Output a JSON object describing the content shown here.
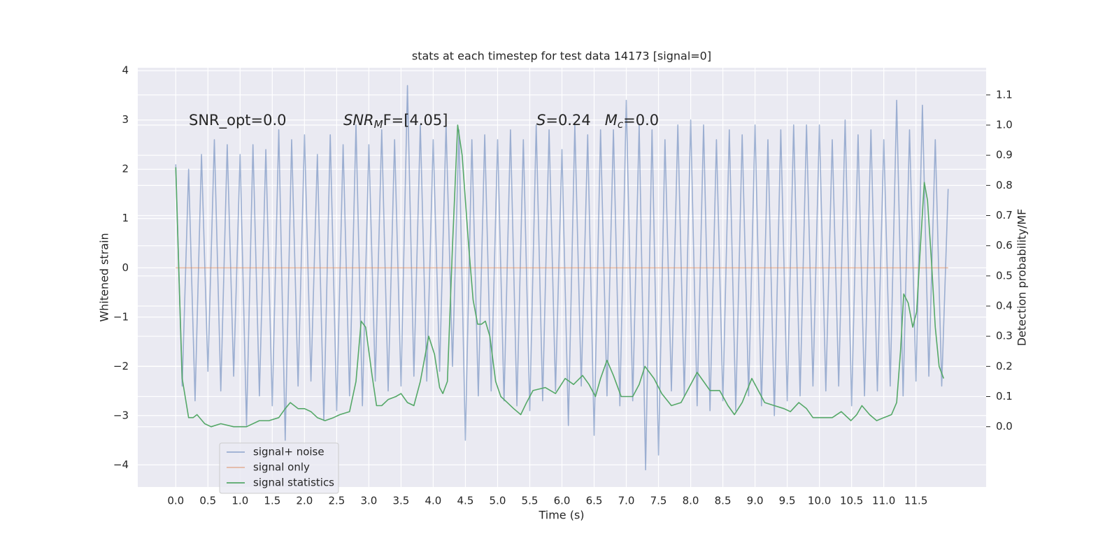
{
  "chart_data": {
    "type": "line",
    "title": "stats at each timestep for test data 14173 [signal=0]",
    "xlabel": "Time (s)",
    "ylabel": "Whitened strain",
    "y2label": "Detection probability/MF",
    "xlim": [
      -0.59,
      12.59
    ],
    "ylim": [
      -4.45,
      4.06
    ],
    "y2lim": [
      -0.2,
      1.19
    ],
    "xticks": [
      {
        "value": 0,
        "label": "0.0"
      },
      0.5,
      {
        "value": 1,
        "label": "1.0"
      },
      1.5,
      {
        "value": 2,
        "label": "2.0"
      },
      2.5,
      {
        "value": 3,
        "label": "3.0"
      },
      3.5,
      {
        "value": 4,
        "label": "4.0"
      },
      4.5,
      {
        "value": 5,
        "label": "5.0"
      },
      5.5,
      {
        "value": 6,
        "label": "6.0"
      },
      6.5,
      {
        "value": 7,
        "label": "7.0"
      },
      7.5,
      {
        "value": 8,
        "label": "8.0"
      },
      8.5,
      {
        "value": 9,
        "label": "9.0"
      },
      9.5,
      {
        "value": 10,
        "label": "10.0"
      },
      10.5,
      {
        "value": 11,
        "label": "11.0"
      },
      11.5
    ],
    "yticks": [
      {
        "value": -4,
        "label": "−4"
      },
      {
        "value": -3,
        "label": "−3"
      },
      {
        "value": -2,
        "label": "−2"
      },
      {
        "value": -1,
        "label": "−1"
      },
      0,
      1,
      2,
      3,
      4
    ],
    "y2ticks": [
      {
        "value": 0,
        "label": "0.0"
      },
      0.1,
      0.2,
      0.3,
      0.4,
      0.5,
      0.6,
      0.7,
      0.8,
      0.9,
      {
        "value": 1,
        "label": "1.0"
      },
      1.1
    ],
    "grid": true,
    "legend": "lower left",
    "annotations": [
      [
        {
          "text": "SNR_opt=0.0"
        }
      ],
      [
        {
          "text": "SNR",
          "italic": true
        },
        {
          "text": "M",
          "italic": true,
          "sub": true
        },
        {
          "text": "F=[4.05]"
        }
      ],
      [
        {
          "text": "S",
          "italic": true
        },
        {
          "text": "=0.24   "
        },
        {
          "text": "M",
          "italic": true
        },
        {
          "text": "c",
          "italic": true,
          "sub": true
        },
        {
          "text": "=0.0"
        }
      ]
    ],
    "series": [
      {
        "name": "signal+ noise",
        "color": "#4c72b0",
        "opacity": 0.5,
        "x": [
          0.0,
          0.1,
          0.2,
          0.3,
          0.4,
          0.5,
          0.6,
          0.7,
          0.8,
          0.9,
          1.0,
          1.1,
          1.2,
          1.3,
          1.4,
          1.5,
          1.6,
          1.7,
          1.8,
          1.9,
          2.0,
          2.1,
          2.2,
          2.3,
          2.4,
          2.5,
          2.6,
          2.7,
          2.8,
          2.9,
          3.0,
          3.1,
          3.2,
          3.3,
          3.4,
          3.5,
          3.6,
          3.7,
          3.8,
          3.9,
          4.0,
          4.1,
          4.2,
          4.3,
          4.4,
          4.5,
          4.6,
          4.7,
          4.8,
          4.9,
          5.0,
          5.1,
          5.2,
          5.3,
          5.4,
          5.5,
          5.6,
          5.7,
          5.8,
          5.9,
          6.0,
          6.1,
          6.2,
          6.3,
          6.4,
          6.5,
          6.6,
          6.7,
          6.8,
          6.9,
          7.0,
          7.1,
          7.2,
          7.3,
          7.4,
          7.5,
          7.6,
          7.7,
          7.8,
          7.9,
          8.0,
          8.1,
          8.2,
          8.3,
          8.4,
          8.5,
          8.6,
          8.7,
          8.8,
          8.9,
          9.0,
          9.1,
          9.2,
          9.3,
          9.4,
          9.5,
          9.6,
          9.7,
          9.8,
          9.9,
          10.0,
          10.1,
          10.2,
          10.3,
          10.4,
          10.5,
          10.6,
          10.7,
          10.8,
          10.9,
          11.0,
          11.1,
          11.2,
          11.3,
          11.4,
          11.5,
          11.6,
          11.7,
          11.8,
          11.9,
          12.0
        ],
        "values": [
          2.1,
          -2.4,
          2.0,
          -2.7,
          2.3,
          -2.1,
          2.6,
          -2.5,
          2.5,
          -2.2,
          2.3,
          -3.2,
          2.5,
          -2.6,
          2.4,
          -2.8,
          2.8,
          -3.5,
          2.6,
          -2.4,
          2.7,
          -2.3,
          2.3,
          -3.1,
          2.7,
          -2.9,
          2.5,
          -2.6,
          2.9,
          -2.8,
          2.5,
          -2.3,
          2.8,
          -2.5,
          2.6,
          -2.4,
          3.7,
          -2.2,
          2.9,
          -2.3,
          2.6,
          -2.1,
          2.9,
          -2.0,
          2.8,
          -3.5,
          2.6,
          -2.6,
          2.7,
          -2.5,
          2.6,
          -2.7,
          2.8,
          -2.8,
          2.6,
          -2.9,
          2.9,
          -2.7,
          2.8,
          -2.5,
          2.4,
          -3.2,
          2.9,
          -2.4,
          2.7,
          -3.4,
          2.8,
          -2.6,
          2.8,
          -2.8,
          3.4,
          -2.7,
          2.9,
          -4.1,
          2.8,
          -3.8,
          2.6,
          -2.5,
          2.9,
          -2.6,
          3.0,
          -2.8,
          2.9,
          -2.9,
          2.6,
          -2.7,
          2.8,
          -2.9,
          2.7,
          -2.6,
          2.9,
          -2.8,
          2.6,
          -3.0,
          2.8,
          -2.7,
          2.9,
          -2.6,
          2.9,
          -2.4,
          2.9,
          -2.5,
          2.6,
          -2.4,
          3.0,
          -2.8,
          2.7,
          -2.6,
          2.8,
          -2.5,
          2.6,
          -2.4,
          3.4,
          -2.6,
          2.8,
          -2.3,
          3.3,
          -2.2,
          2.6,
          -2.4,
          1.6
        ]
      },
      {
        "name": "signal only",
        "color": "#dd8452",
        "opacity": 0.5,
        "x": [
          0.0,
          12.0
        ],
        "values": [
          0,
          0
        ]
      },
      {
        "name": "signal statistics",
        "color": "#55a868",
        "opacity": 1,
        "axis": "y2",
        "x": [
          0.0,
          0.05,
          0.1,
          0.2,
          0.27,
          0.33,
          0.45,
          0.55,
          0.7,
          0.9,
          1.1,
          1.3,
          1.45,
          1.6,
          1.7,
          1.78,
          1.9,
          2.0,
          2.1,
          2.2,
          2.32,
          2.45,
          2.55,
          2.7,
          2.8,
          2.88,
          2.95,
          3.05,
          3.12,
          3.2,
          3.3,
          3.42,
          3.5,
          3.6,
          3.7,
          3.8,
          3.93,
          4.02,
          4.1,
          4.15,
          4.22,
          4.3,
          4.38,
          4.45,
          4.55,
          4.62,
          4.69,
          4.75,
          4.81,
          4.88,
          4.97,
          5.05,
          5.15,
          5.25,
          5.36,
          5.45,
          5.55,
          5.74,
          5.9,
          6.05,
          6.18,
          6.32,
          6.42,
          6.52,
          6.6,
          6.7,
          6.8,
          6.92,
          7.1,
          7.2,
          7.29,
          7.43,
          7.55,
          7.7,
          7.85,
          7.95,
          8.1,
          8.2,
          8.3,
          8.45,
          8.58,
          8.68,
          8.8,
          8.95,
          9.05,
          9.15,
          9.3,
          9.45,
          9.55,
          9.68,
          9.8,
          9.9,
          10.05,
          10.2,
          10.34,
          10.49,
          10.58,
          10.66,
          10.78,
          10.89,
          11.0,
          11.12,
          11.2,
          11.26,
          11.31,
          11.38,
          11.45,
          11.51,
          11.57,
          11.63,
          11.68,
          11.74,
          11.8,
          11.86,
          11.93
        ],
        "values": [
          0.86,
          0.5,
          0.16,
          0.03,
          0.03,
          0.04,
          0.01,
          0.0,
          0.01,
          0.0,
          0.0,
          0.02,
          0.02,
          0.03,
          0.06,
          0.08,
          0.06,
          0.06,
          0.05,
          0.03,
          0.02,
          0.03,
          0.04,
          0.05,
          0.15,
          0.35,
          0.33,
          0.17,
          0.07,
          0.07,
          0.09,
          0.1,
          0.11,
          0.08,
          0.07,
          0.15,
          0.3,
          0.24,
          0.13,
          0.11,
          0.15,
          0.6,
          1.0,
          0.9,
          0.6,
          0.42,
          0.34,
          0.34,
          0.35,
          0.3,
          0.15,
          0.1,
          0.08,
          0.06,
          0.04,
          0.08,
          0.12,
          0.13,
          0.11,
          0.16,
          0.14,
          0.17,
          0.14,
          0.1,
          0.16,
          0.22,
          0.17,
          0.1,
          0.1,
          0.14,
          0.2,
          0.16,
          0.11,
          0.07,
          0.08,
          0.12,
          0.18,
          0.15,
          0.12,
          0.12,
          0.07,
          0.04,
          0.08,
          0.16,
          0.12,
          0.08,
          0.07,
          0.06,
          0.05,
          0.08,
          0.06,
          0.03,
          0.03,
          0.03,
          0.05,
          0.02,
          0.04,
          0.07,
          0.04,
          0.02,
          0.03,
          0.04,
          0.08,
          0.25,
          0.44,
          0.41,
          0.33,
          0.38,
          0.6,
          0.81,
          0.75,
          0.55,
          0.33,
          0.2,
          0.16
        ]
      }
    ]
  }
}
